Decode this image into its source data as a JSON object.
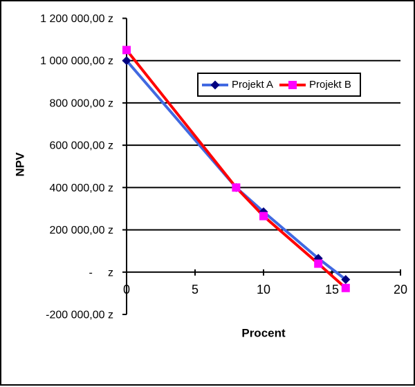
{
  "window": {
    "background_color": "#FFFFFF",
    "border_color": "#000000"
  },
  "chart_data": {
    "type": "line",
    "title": "",
    "xlabel": "Procent",
    "ylabel": "NPV",
    "xlim": [
      0,
      20
    ],
    "ylim": [
      -200000,
      1200000
    ],
    "grid": "horizontal",
    "legend_position": "inside-top-center",
    "axis_color": "#000000",
    "x": [
      0,
      8,
      10,
      14,
      16
    ],
    "series": [
      {
        "name": "Projekt A",
        "values": [
          1000000,
          400000,
          285000,
          65000,
          -35000
        ],
        "line_color": "#4169E1",
        "marker": "diamond",
        "marker_color": "#000080"
      },
      {
        "name": "Projekt B",
        "values": [
          1050000,
          400000,
          265000,
          40000,
          -75000
        ],
        "line_color": "#FF0000",
        "marker": "square",
        "marker_color": "#FF00FF"
      }
    ],
    "x_ticks": [
      {
        "value": 0,
        "label": "0"
      },
      {
        "value": 5,
        "label": "5"
      },
      {
        "value": 10,
        "label": "10"
      },
      {
        "value": 15,
        "label": "15"
      },
      {
        "value": 20,
        "label": "20"
      }
    ],
    "y_ticks": [
      {
        "value": 1200000,
        "label": "1 200 000,00 z"
      },
      {
        "value": 1000000,
        "label": "1 000 000,00 z"
      },
      {
        "value": 800000,
        "label": "800 000,00 z"
      },
      {
        "value": 600000,
        "label": "600 000,00 z"
      },
      {
        "value": 400000,
        "label": "400 000,00 z"
      },
      {
        "value": 200000,
        "label": "200 000,00 z"
      },
      {
        "value": 0,
        "label": "-     z"
      },
      {
        "value": -200000,
        "label": "-200 000,00 z"
      }
    ],
    "gridline_values": [
      1000000,
      800000,
      600000,
      400000,
      200000,
      0
    ]
  }
}
